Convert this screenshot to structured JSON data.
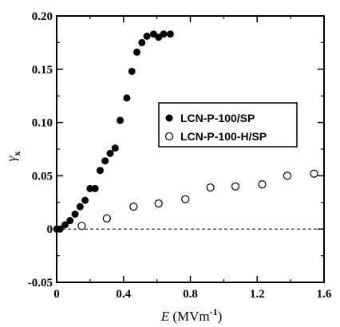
{
  "chart_data": {
    "type": "scatter",
    "xlabel": {
      "var": "E",
      "unit_open": " (MVm",
      "unit_exp": "-1",
      "unit_close": ")"
    },
    "ylabel": {
      "var": "γ",
      "sub": "x"
    },
    "xlim": [
      0,
      1.6
    ],
    "ylim": [
      -0.05,
      0.2
    ],
    "x_ticks": [
      "0",
      "0.4",
      "0.8",
      "1.2",
      "1.6"
    ],
    "y_ticks": [
      "-0.05",
      "0",
      "0.05",
      "0.10",
      "0.15",
      "0.20"
    ],
    "x_tick_values": [
      0,
      0.4,
      0.8,
      1.2,
      1.6
    ],
    "y_tick_values": [
      -0.05,
      0,
      0.05,
      0.1,
      0.15,
      0.2
    ],
    "reference_line": {
      "y": 0,
      "style": "dashed"
    },
    "legend_position": "center-right",
    "series": [
      {
        "name": "LCN-P-100/SP",
        "marker": "filled-circle",
        "color": "#000000",
        "points": [
          [
            0.0,
            0.0
          ],
          [
            0.02,
            0.0
          ],
          [
            0.05,
            0.004
          ],
          [
            0.08,
            0.008
          ],
          [
            0.11,
            0.014
          ],
          [
            0.14,
            0.021
          ],
          [
            0.17,
            0.027
          ],
          [
            0.2,
            0.038
          ],
          [
            0.23,
            0.038
          ],
          [
            0.26,
            0.055
          ],
          [
            0.29,
            0.064
          ],
          [
            0.32,
            0.071
          ],
          [
            0.35,
            0.076
          ],
          [
            0.38,
            0.102
          ],
          [
            0.42,
            0.123
          ],
          [
            0.45,
            0.148
          ],
          [
            0.48,
            0.166
          ],
          [
            0.51,
            0.175
          ],
          [
            0.54,
            0.181
          ],
          [
            0.58,
            0.183
          ],
          [
            0.61,
            0.18
          ],
          [
            0.64,
            0.183
          ],
          [
            0.68,
            0.183
          ]
        ]
      },
      {
        "name": "LCN-P-100-H/SP",
        "marker": "open-circle",
        "color": "#000000",
        "points": [
          [
            0.15,
            0.003
          ],
          [
            0.3,
            0.01
          ],
          [
            0.46,
            0.021
          ],
          [
            0.61,
            0.024
          ],
          [
            0.77,
            0.028
          ],
          [
            0.92,
            0.039
          ],
          [
            1.07,
            0.04
          ],
          [
            1.23,
            0.042
          ],
          [
            1.38,
            0.05
          ],
          [
            1.54,
            0.052
          ]
        ]
      }
    ]
  }
}
